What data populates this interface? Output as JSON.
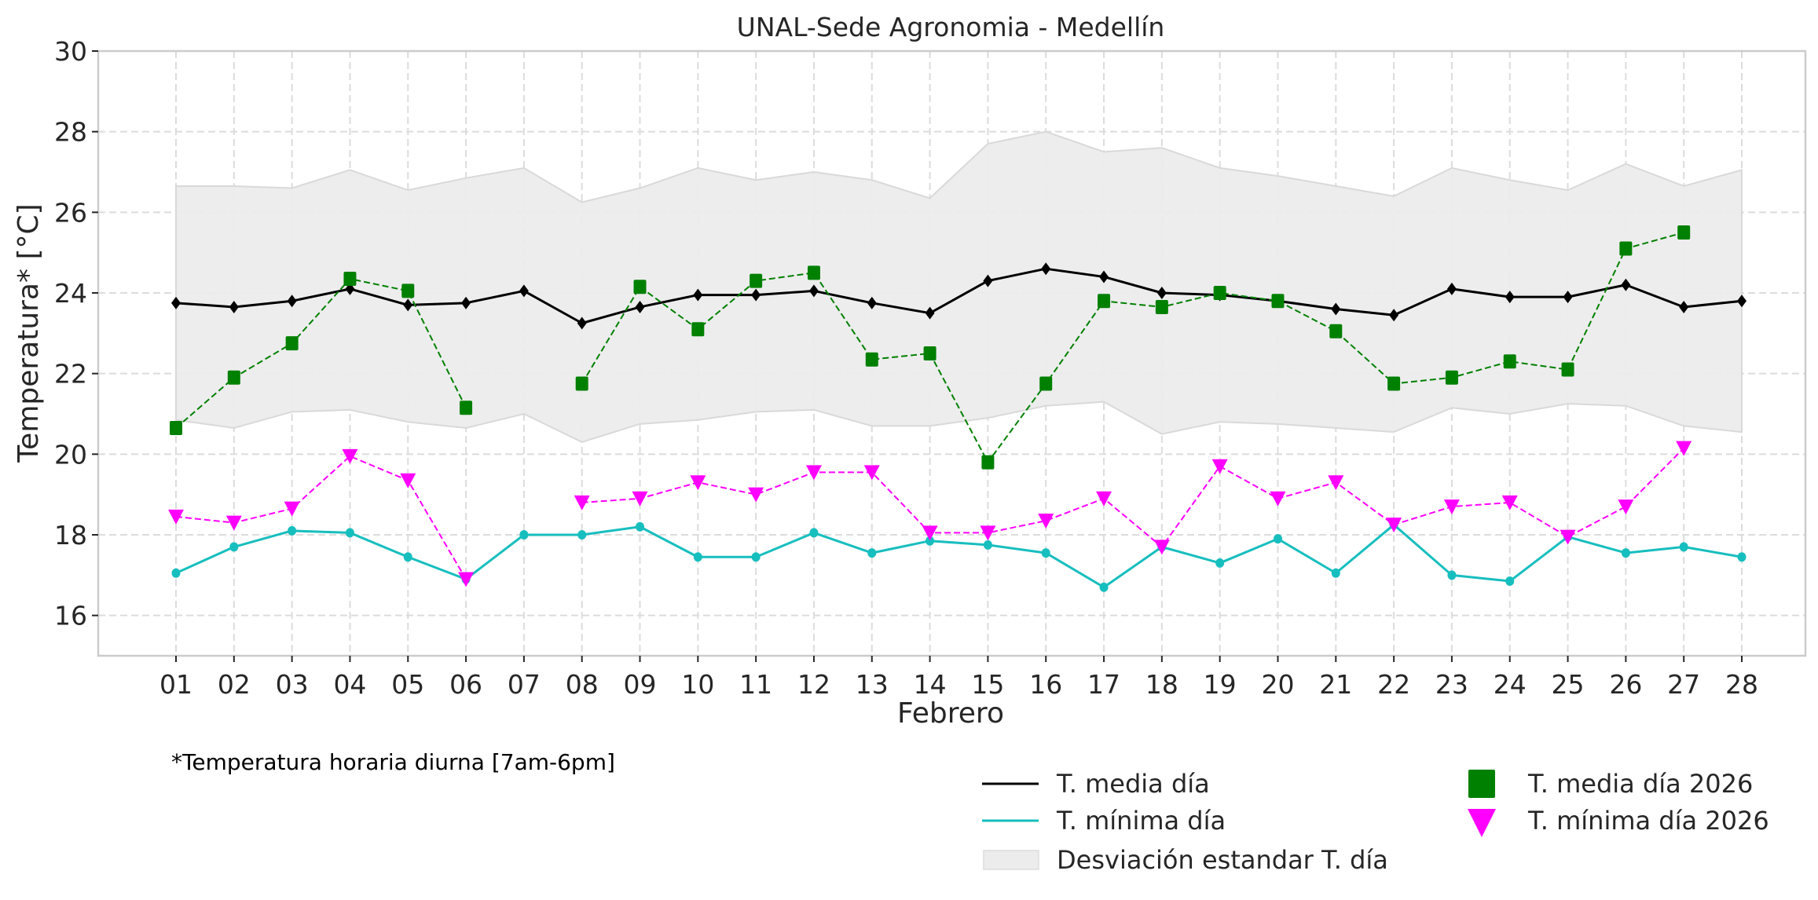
{
  "chart_data": {
    "type": "line",
    "title": "UNAL-Sede Agronomia - Medellín",
    "xlabel": "Febrero",
    "ylabel": "Temperatura* [°C]",
    "ylim": [
      15,
      30
    ],
    "yticks": [
      "16",
      "18",
      "20",
      "22",
      "24",
      "26",
      "28",
      "30"
    ],
    "grid": true,
    "legend_position": "bottom-right (below plot)",
    "note": "*Temperatura horaria diurna [7am-6pm]",
    "categories": [
      "01",
      "02",
      "03",
      "04",
      "05",
      "06",
      "07",
      "08",
      "09",
      "10",
      "11",
      "12",
      "13",
      "14",
      "15",
      "16",
      "17",
      "18",
      "19",
      "20",
      "21",
      "22",
      "23",
      "24",
      "25",
      "26",
      "27",
      "28"
    ],
    "band": {
      "name": "Desviación estandar T. día",
      "color": "#ececec",
      "upper": [
        26.65,
        26.65,
        26.6,
        27.05,
        26.55,
        26.85,
        27.1,
        26.25,
        26.6,
        27.1,
        26.8,
        27.0,
        26.8,
        26.35,
        27.7,
        28.0,
        27.5,
        27.6,
        27.1,
        26.9,
        26.65,
        26.4,
        27.1,
        26.8,
        26.55,
        27.2,
        26.65,
        27.05
      ],
      "lower": [
        20.85,
        20.65,
        21.05,
        21.1,
        20.8,
        20.65,
        21.0,
        20.3,
        20.75,
        20.85,
        21.05,
        21.1,
        20.7,
        20.7,
        20.9,
        21.2,
        21.3,
        20.5,
        20.8,
        20.75,
        20.65,
        20.55,
        21.15,
        21.0,
        21.25,
        21.2,
        20.7,
        20.55
      ]
    },
    "series": [
      {
        "name": "T. media día",
        "color": "#000000",
        "style": "solid",
        "marker": "diamond",
        "values": [
          23.75,
          23.65,
          23.8,
          24.1,
          23.7,
          23.75,
          24.05,
          23.25,
          23.65,
          23.95,
          23.95,
          24.05,
          23.75,
          23.5,
          24.3,
          24.6,
          24.4,
          24.0,
          23.95,
          23.8,
          23.6,
          23.45,
          24.1,
          23.9,
          23.9,
          24.2,
          23.65,
          23.8
        ]
      },
      {
        "name": "T. mínima día",
        "color": "#17bebe",
        "style": "solid",
        "marker": "circle",
        "values": [
          17.05,
          17.7,
          18.1,
          18.05,
          17.45,
          16.9,
          18.0,
          18.0,
          18.2,
          17.45,
          17.45,
          18.05,
          17.55,
          17.85,
          17.75,
          17.55,
          16.7,
          17.7,
          17.3,
          17.9,
          17.05,
          18.25,
          17.0,
          16.85,
          17.95,
          17.55,
          17.7,
          17.45
        ]
      },
      {
        "name": "T. media día 2026",
        "color": "#008000",
        "style": "dashed",
        "marker": "square",
        "values": [
          20.65,
          21.9,
          22.75,
          24.35,
          24.05,
          21.15,
          null,
          21.75,
          24.15,
          23.1,
          24.3,
          24.5,
          22.35,
          22.5,
          19.8,
          21.75,
          23.8,
          23.65,
          24.0,
          23.8,
          23.05,
          21.75,
          21.9,
          22.3,
          22.1,
          25.1,
          25.5,
          null
        ]
      },
      {
        "name": "T. mínima día 2026",
        "color": "#ff00ff",
        "style": "dashed",
        "marker": "triangle-down",
        "values": [
          18.45,
          18.3,
          18.65,
          19.95,
          19.35,
          16.9,
          null,
          18.8,
          18.9,
          19.3,
          19.0,
          19.55,
          19.55,
          18.05,
          18.05,
          18.35,
          18.9,
          17.7,
          19.7,
          18.9,
          19.3,
          18.25,
          18.7,
          18.8,
          17.95,
          18.7,
          20.15,
          null
        ]
      }
    ]
  }
}
